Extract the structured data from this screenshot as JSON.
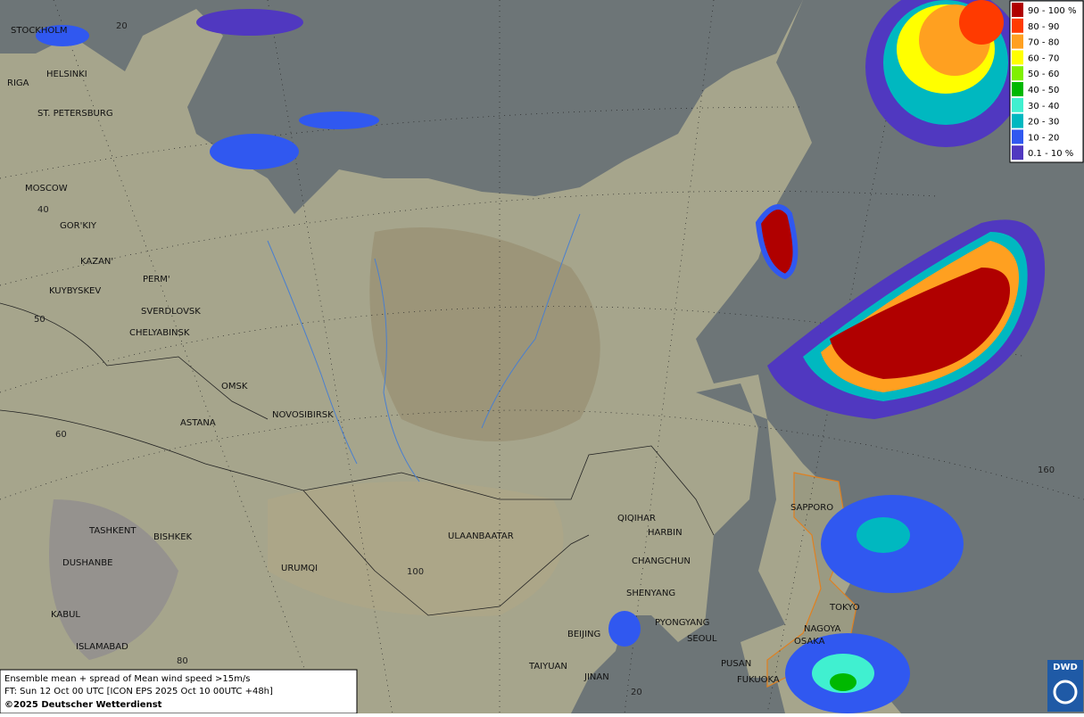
{
  "cities": [
    "STOCKHOLM",
    "HELSINKI",
    "RIGA",
    "ST. PETERSBURG",
    "MOSCOW",
    "GOR'KIY",
    "KAZAN'",
    "PERM'",
    "KUYBYSKEV",
    "SVERDLOVSK",
    "CHELYABINSK",
    "OMSK",
    "NOVOSIBIRSK",
    "ASTANA",
    "TASHKENT",
    "BISHKEK",
    "DUSHANBE",
    "URUMQI",
    "KABUL",
    "ISLAMABAD",
    "ULAANBAATAR",
    "QIQIHAR",
    "HARBIN",
    "CHANGCHUN",
    "SHENYANG",
    "BEIJING",
    "PYONGYANG",
    "SEOUL",
    "TAIYUAN",
    "JINAN",
    "PUSAN",
    "FUKUOKA",
    "SAPPORO",
    "TOKYO",
    "NAGOYA",
    "OSAKA"
  ],
  "graticule_labels": [
    20,
    40,
    50,
    60,
    80,
    100,
    160,
    20
  ],
  "legend": [
    {
      "label": "90 - 100 %",
      "color": "#b00000"
    },
    {
      "label": "80 - 90",
      "color": "#ff3a00"
    },
    {
      "label": "70 - 80",
      "color": "#ffa020"
    },
    {
      "label": "60 - 70",
      "color": "#ffff00"
    },
    {
      "label": "50 - 60",
      "color": "#80f000"
    },
    {
      "label": "40 - 50",
      "color": "#00b800"
    },
    {
      "label": "30 - 40",
      "color": "#40f0d0"
    },
    {
      "label": "20 - 30",
      "color": "#00b8c0"
    },
    {
      "label": "10 - 20",
      "color": "#3058f0"
    },
    {
      "label": "0.1 - 10 %",
      "color": "#5038c0"
    }
  ],
  "caption": [
    "Ensemble mean + spread of Mean wind speed >15m/s",
    "FT: Sun 12 Oct 00 UTC [ICON EPS 2025 Oct 10 00UTC +48h]",
    "©2025 Deutscher Wetterdienst"
  ],
  "logo": "DWD"
}
